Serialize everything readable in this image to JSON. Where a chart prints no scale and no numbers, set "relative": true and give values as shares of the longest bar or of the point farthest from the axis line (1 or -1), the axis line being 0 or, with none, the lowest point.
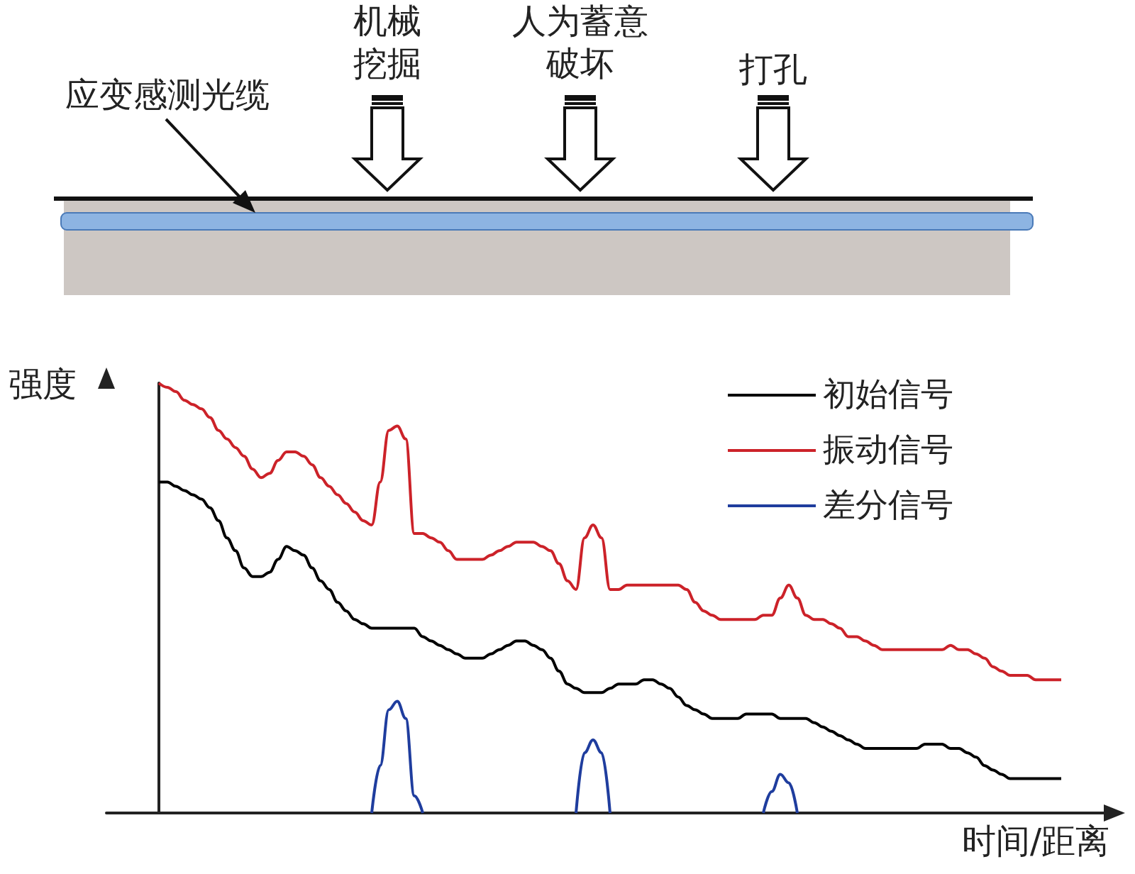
{
  "chart_data": {
    "type": "line",
    "relative": true,
    "xlabel": "时间/距离",
    "ylabel": "强度",
    "legend": "top right",
    "grid": false,
    "marker": "none",
    "annotations": [
      "应变感测光缆",
      "机械挖掘",
      "人为蓄意破坏",
      "打孔"
    ],
    "categories": [
      null,
      null,
      null,
      null,
      null,
      null,
      null,
      null,
      null,
      null,
      null,
      null,
      null,
      null,
      null,
      null,
      null,
      null,
      null,
      null,
      null,
      null,
      null,
      null,
      null,
      null,
      null,
      null,
      null,
      null,
      null,
      null,
      null,
      null,
      null,
      null,
      null,
      null,
      null,
      null,
      null,
      null,
      null,
      null,
      null,
      null,
      null,
      null,
      null,
      null,
      null,
      null,
      null,
      null,
      null,
      null,
      null,
      null,
      null,
      null,
      null,
      null,
      null,
      null,
      null,
      null,
      null,
      null,
      null,
      null,
      null,
      null,
      null,
      null,
      null,
      null,
      null,
      null,
      null,
      null,
      null,
      null,
      null,
      null,
      null,
      null,
      null,
      null,
      null,
      null,
      null,
      null,
      null,
      null,
      null,
      null,
      null,
      null,
      null,
      null,
      null,
      null,
      null,
      null,
      null,
      null,
      null
    ],
    "series": [
      {
        "name": "初始信号",
        "color": "#000000",
        "values": [
          0.77,
          0.77,
          0.76,
          0.75,
          0.74,
          0.73,
          0.71,
          0.68,
          0.64,
          0.61,
          0.57,
          0.55,
          0.55,
          0.56,
          0.59,
          0.62,
          0.61,
          0.6,
          0.57,
          0.54,
          0.52,
          0.49,
          0.47,
          0.45,
          0.44,
          0.43,
          0.43,
          0.43,
          0.43,
          0.43,
          0.43,
          0.41,
          0.4,
          0.39,
          0.38,
          0.37,
          0.36,
          0.36,
          0.36,
          0.37,
          0.38,
          0.39,
          0.4,
          0.4,
          0.39,
          0.38,
          0.36,
          0.33,
          0.3,
          0.29,
          0.28,
          0.28,
          0.28,
          0.29,
          0.3,
          0.3,
          0.3,
          0.31,
          0.31,
          0.3,
          0.29,
          0.27,
          0.25,
          0.24,
          0.23,
          0.22,
          0.22,
          0.22,
          0.22,
          0.23,
          0.23,
          0.23,
          0.23,
          0.22,
          0.22,
          0.22,
          0.22,
          0.21,
          0.2,
          0.19,
          0.18,
          0.17,
          0.16,
          0.15,
          0.15,
          0.15,
          0.15,
          0.15,
          0.15,
          0.15,
          0.16,
          0.16,
          0.16,
          0.15,
          0.15,
          0.14,
          0.13,
          0.11,
          0.1,
          0.09,
          0.08,
          0.08,
          0.08,
          0.08,
          0.08,
          0.08,
          0.08
        ]
      },
      {
        "name": "振动信号",
        "color": "#cc2229",
        "values": [
          1.0,
          0.99,
          0.98,
          0.96,
          0.95,
          0.94,
          0.92,
          0.89,
          0.87,
          0.85,
          0.83,
          0.8,
          0.78,
          0.79,
          0.82,
          0.84,
          0.84,
          0.83,
          0.81,
          0.78,
          0.76,
          0.74,
          0.72,
          0.7,
          0.68,
          0.67,
          0.77,
          0.89,
          0.9,
          0.87,
          0.65,
          0.65,
          0.64,
          0.63,
          0.61,
          0.59,
          0.59,
          0.59,
          0.59,
          0.6,
          0.61,
          0.62,
          0.63,
          0.63,
          0.63,
          0.62,
          0.61,
          0.58,
          0.54,
          0.52,
          0.64,
          0.67,
          0.64,
          0.52,
          0.52,
          0.53,
          0.53,
          0.53,
          0.53,
          0.53,
          0.53,
          0.53,
          0.52,
          0.49,
          0.47,
          0.46,
          0.45,
          0.45,
          0.45,
          0.45,
          0.45,
          0.46,
          0.46,
          0.5,
          0.53,
          0.5,
          0.46,
          0.45,
          0.45,
          0.44,
          0.43,
          0.41,
          0.41,
          0.4,
          0.39,
          0.38,
          0.38,
          0.38,
          0.38,
          0.38,
          0.38,
          0.38,
          0.38,
          0.39,
          0.38,
          0.38,
          0.37,
          0.36,
          0.34,
          0.33,
          0.32,
          0.32,
          0.32,
          0.31,
          0.31,
          0.31,
          0.31
        ]
      },
      {
        "name": "差分信号",
        "color": "#1f3d9e",
        "values": [
          null,
          null,
          null,
          null,
          null,
          null,
          null,
          null,
          null,
          null,
          null,
          null,
          null,
          null,
          null,
          null,
          null,
          null,
          null,
          null,
          null,
          null,
          null,
          null,
          null,
          0,
          0.11,
          0.24,
          0.26,
          0.22,
          0.04,
          0,
          null,
          null,
          null,
          null,
          null,
          null,
          null,
          null,
          null,
          null,
          null,
          null,
          null,
          null,
          null,
          null,
          null,
          0,
          0.14,
          0.17,
          0.14,
          0,
          null,
          null,
          null,
          null,
          null,
          null,
          null,
          null,
          null,
          null,
          null,
          null,
          null,
          null,
          null,
          null,
          null,
          0,
          0.05,
          0.09,
          0.07,
          0,
          null,
          null,
          null,
          null,
          null,
          null,
          null,
          null,
          null,
          null,
          null,
          null,
          null,
          null,
          null,
          null,
          null,
          null,
          null,
          null,
          null,
          null,
          null,
          null,
          null,
          null,
          null,
          null,
          null,
          null,
          null
        ]
      }
    ]
  }
}
